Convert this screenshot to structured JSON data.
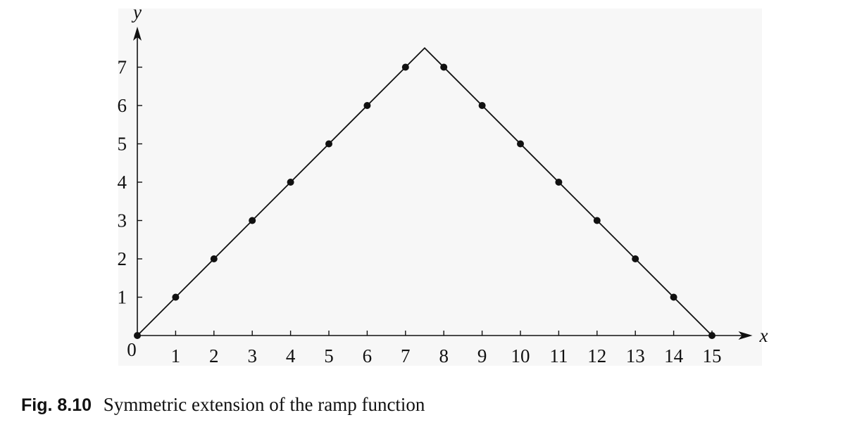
{
  "caption": {
    "label": "Fig. 8.10",
    "text": "Symmetric extension of the ramp function"
  },
  "chart_data": {
    "type": "line",
    "title": "",
    "xlabel": "x",
    "ylabel": "y",
    "origin_label": "0",
    "xlim": [
      0,
      15.8
    ],
    "ylim": [
      0,
      7.8
    ],
    "x_ticks": [
      1,
      2,
      3,
      4,
      5,
      6,
      7,
      8,
      9,
      10,
      11,
      12,
      13,
      14,
      15
    ],
    "y_ticks": [
      1,
      2,
      3,
      4,
      5,
      6,
      7
    ],
    "grid": false,
    "series": [
      {
        "kind": "line",
        "x": [
          0,
          7.5,
          15
        ],
        "y": [
          0,
          7.5,
          0
        ]
      },
      {
        "kind": "points",
        "x": [
          0,
          1,
          2,
          3,
          4,
          5,
          6,
          7,
          8,
          9,
          10,
          11,
          12,
          13,
          14,
          15
        ],
        "y": [
          0,
          1,
          2,
          3,
          4,
          5,
          6,
          7,
          7,
          6,
          5,
          4,
          3,
          2,
          1,
          0
        ]
      }
    ]
  }
}
